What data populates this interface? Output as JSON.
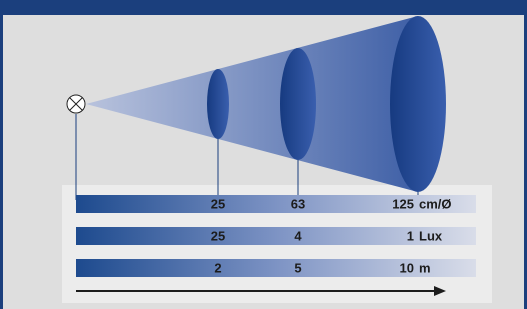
{
  "scales": [
    {
      "values": [
        25,
        63,
        125
      ],
      "unit": "cm/Ø"
    },
    {
      "values": [
        25,
        4,
        1
      ],
      "unit": "Lux"
    },
    {
      "values": [
        2,
        5,
        10
      ],
      "unit": "m"
    }
  ]
}
